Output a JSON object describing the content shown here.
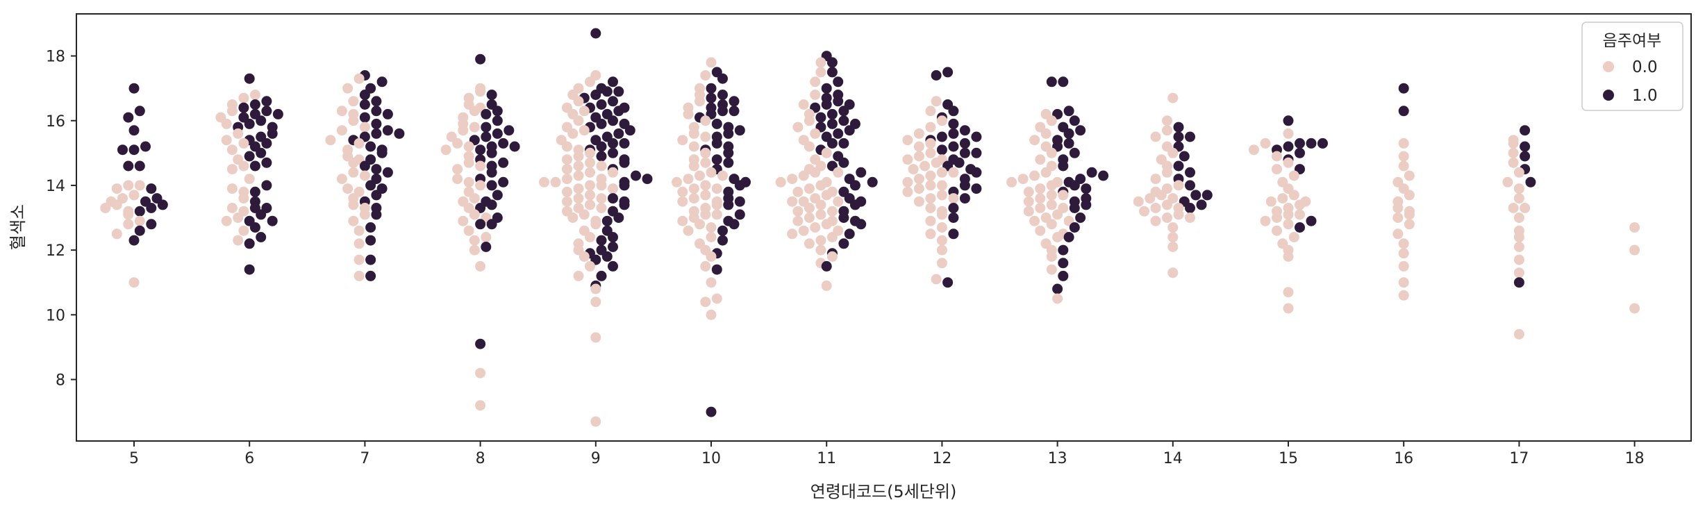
{
  "chart_data": {
    "type": "swarm",
    "xlabel": "연령대코드(5세단위)",
    "ylabel": "혈색소",
    "ylim": [
      6.1,
      19.3
    ],
    "yticks": [
      8,
      10,
      12,
      14,
      16,
      18
    ],
    "categories": [
      "5",
      "6",
      "7",
      "8",
      "9",
      "10",
      "11",
      "12",
      "13",
      "14",
      "15",
      "16",
      "17",
      "18"
    ],
    "grid": false,
    "legend": {
      "title": "음주여부",
      "placement": "top-right",
      "entries": [
        {
          "label": "0.0",
          "color": "#ebcdc3"
        },
        {
          "label": "1.0",
          "color": "#2e1a3a"
        }
      ]
    },
    "hue_order": [
      "0.0",
      "1.0"
    ],
    "colors": {
      "0.0": "#ebcdc3",
      "1.0": "#2e1a3a"
    },
    "series": [
      {
        "name": "0.0",
        "points": {
          "5": [
            11.0,
            12.5,
            12.8,
            13.1,
            13.3,
            13.5,
            13.6,
            13.7,
            13.9,
            14.0,
            14.0,
            13.4,
            13.2,
            12.9
          ],
          "6": [
            12.3,
            12.6,
            12.9,
            13.0,
            13.3,
            13.6,
            13.9,
            14.2,
            14.5,
            14.8,
            15.1,
            15.4,
            15.6,
            15.9,
            16.1,
            16.3,
            16.5,
            16.7,
            16.8,
            13.2,
            13.8,
            14.6,
            15.3
          ],
          "7": [
            11.2,
            11.7,
            12.2,
            12.6,
            12.9,
            13.1,
            13.4,
            13.6,
            13.9,
            14.2,
            14.4,
            14.7,
            14.9,
            15.1,
            15.4,
            15.7,
            16.0,
            16.3,
            16.6,
            17.0,
            17.3,
            13.3,
            13.8,
            14.3,
            14.8,
            15.3,
            15.8,
            16.2
          ],
          "8": [
            7.2,
            8.2,
            11.5,
            12.0,
            12.3,
            12.6,
            12.9,
            13.1,
            13.3,
            13.5,
            13.8,
            14.0,
            14.2,
            14.5,
            14.7,
            14.9,
            15.1,
            15.3,
            15.5,
            15.7,
            15.9,
            16.1,
            16.3,
            16.5,
            16.7,
            16.9,
            17.0,
            12.4,
            13.0,
            13.6,
            14.1,
            14.6,
            15.2,
            15.8,
            16.4
          ],
          "9": [
            6.7,
            9.3,
            10.4,
            10.8,
            11.2,
            11.5,
            11.8,
            12.0,
            12.2,
            12.4,
            12.6,
            12.8,
            13.0,
            13.1,
            13.2,
            13.3,
            13.4,
            13.5,
            13.6,
            13.7,
            13.8,
            13.9,
            14.0,
            14.0,
            14.1,
            14.1,
            14.2,
            14.3,
            14.4,
            14.5,
            14.6,
            14.7,
            14.8,
            14.9,
            15.0,
            15.2,
            15.4,
            15.6,
            15.8,
            16.0,
            16.2,
            16.4,
            16.6,
            16.8,
            17.0,
            17.2,
            17.4,
            12.9,
            13.3,
            13.6,
            13.9,
            14.2,
            14.4,
            14.6,
            15.1,
            15.7,
            16.3
          ],
          "10": [
            10.0,
            10.4,
            10.5,
            11.0,
            11.5,
            11.8,
            12.0,
            12.2,
            12.4,
            12.6,
            12.8,
            12.9,
            13.0,
            13.1,
            13.2,
            13.3,
            13.4,
            13.5,
            13.6,
            13.7,
            13.8,
            13.9,
            14.0,
            14.1,
            14.2,
            14.3,
            14.4,
            14.6,
            14.8,
            15.0,
            15.2,
            15.4,
            15.6,
            15.8,
            16.0,
            16.2,
            16.4,
            16.6,
            16.8,
            17.0,
            17.4,
            17.8,
            12.7,
            13.1,
            13.5,
            13.9,
            14.3,
            14.7,
            15.5
          ],
          "11": [
            10.9,
            11.6,
            11.8,
            12.0,
            12.2,
            12.3,
            12.4,
            12.5,
            12.6,
            12.7,
            12.8,
            12.9,
            13.0,
            13.1,
            13.2,
            13.3,
            13.4,
            13.5,
            13.5,
            13.6,
            13.7,
            13.8,
            13.9,
            14.0,
            14.1,
            14.2,
            14.3,
            14.4,
            14.5,
            14.6,
            14.8,
            15.0,
            15.2,
            15.4,
            15.6,
            15.8,
            16.0,
            16.2,
            16.5,
            16.8,
            17.2,
            17.5,
            17.8,
            12.6,
            12.9,
            13.2,
            13.5,
            13.8,
            14.1,
            14.4
          ],
          "12": [
            11.1,
            11.6,
            12.0,
            12.3,
            12.5,
            12.7,
            12.9,
            13.1,
            13.3,
            13.5,
            13.6,
            13.7,
            13.8,
            13.9,
            14.0,
            14.1,
            14.2,
            14.3,
            14.4,
            14.5,
            14.6,
            14.7,
            14.8,
            14.9,
            15.0,
            15.2,
            15.4,
            15.6,
            15.8,
            16.0,
            16.3,
            16.6,
            13.2,
            13.6,
            14.0,
            14.4,
            14.8,
            15.3
          ],
          "13": [
            10.5,
            11.4,
            11.8,
            12.0,
            12.2,
            12.4,
            12.6,
            12.8,
            12.9,
            13.0,
            13.1,
            13.2,
            13.3,
            13.4,
            13.5,
            13.6,
            13.7,
            13.8,
            13.9,
            14.0,
            14.1,
            14.2,
            14.3,
            14.4,
            14.6,
            14.8,
            15.0,
            15.2,
            15.4,
            15.6,
            15.8,
            16.0,
            16.2,
            12.5,
            12.9,
            13.3,
            13.7,
            14.1
          ],
          "14": [
            11.3,
            12.1,
            12.4,
            12.7,
            12.9,
            13.0,
            13.1,
            13.2,
            13.3,
            13.4,
            13.5,
            13.6,
            13.7,
            13.8,
            13.9,
            14.0,
            14.2,
            14.4,
            14.6,
            14.8,
            15.0,
            15.2,
            15.5,
            15.7,
            16.0,
            16.7,
            13.0,
            13.3,
            13.6
          ],
          "15": [
            10.2,
            10.7,
            11.8,
            12.0,
            12.2,
            12.4,
            12.6,
            12.8,
            12.9,
            13.0,
            13.1,
            13.2,
            13.3,
            13.4,
            13.5,
            13.6,
            13.7,
            13.9,
            14.1,
            14.3,
            14.5,
            14.7,
            14.9,
            15.1,
            15.3,
            15.6,
            13.1,
            13.5
          ],
          "16": [
            10.6,
            11.0,
            11.5,
            11.9,
            12.2,
            12.5,
            12.8,
            13.0,
            13.1,
            13.3,
            13.5,
            13.7,
            13.9,
            14.1,
            14.3,
            14.6,
            14.9,
            15.3,
            13.2
          ],
          "17": [
            9.4,
            11.3,
            11.7,
            12.1,
            12.4,
            12.6,
            13.0,
            13.3,
            13.6,
            13.9,
            14.1,
            14.4,
            14.7,
            15.0,
            15.3,
            15.4,
            13.3
          ],
          "18": [
            10.2,
            12.0,
            12.7
          ]
        }
      },
      {
        "name": "1.0",
        "points": {
          "5": [
            12.3,
            12.6,
            12.8,
            13.2,
            13.3,
            13.5,
            13.6,
            13.9,
            14.6,
            14.6,
            15.1,
            15.1,
            15.2,
            15.7,
            16.1,
            16.3,
            17.0,
            13.4
          ],
          "6": [
            11.4,
            12.2,
            12.4,
            12.7,
            12.9,
            13.1,
            13.3,
            13.5,
            13.8,
            14.0,
            14.6,
            14.9,
            15.0,
            15.2,
            15.4,
            15.5,
            15.6,
            15.8,
            15.9,
            16.0,
            16.1,
            16.2,
            16.3,
            16.4,
            16.5,
            16.6,
            17.3,
            12.9,
            13.3,
            14.7,
            15.3,
            15.8,
            16.2
          ],
          "7": [
            11.2,
            11.7,
            12.3,
            12.7,
            13.3,
            13.5,
            13.7,
            14.0,
            14.2,
            14.4,
            14.6,
            14.8,
            15.0,
            15.2,
            15.4,
            15.5,
            15.6,
            15.7,
            15.9,
            16.1,
            16.3,
            16.5,
            16.6,
            16.8,
            17.0,
            17.2,
            17.4,
            13.1,
            13.9,
            14.5,
            15.1,
            15.6,
            16.2
          ],
          "8": [
            9.1,
            12.1,
            12.8,
            13.0,
            13.3,
            13.5,
            13.7,
            14.0,
            14.2,
            14.4,
            14.6,
            14.8,
            15.0,
            15.1,
            15.2,
            15.3,
            15.4,
            15.5,
            15.6,
            15.8,
            16.0,
            16.2,
            16.5,
            16.8,
            17.9,
            12.8,
            13.4,
            14.1,
            14.7,
            15.2,
            15.7,
            16.3
          ],
          "9": [
            10.9,
            11.2,
            11.5,
            11.7,
            11.9,
            12.0,
            12.1,
            12.3,
            12.6,
            12.9,
            13.2,
            13.4,
            13.6,
            14.0,
            14.1,
            14.3,
            14.5,
            14.7,
            14.9,
            15.0,
            15.1,
            15.2,
            15.3,
            15.4,
            15.5,
            15.6,
            15.7,
            15.8,
            15.9,
            16.0,
            16.1,
            16.2,
            16.3,
            16.4,
            16.5,
            16.6,
            16.7,
            16.8,
            16.9,
            17.0,
            17.2,
            18.7,
            11.8,
            12.4,
            13.0,
            13.5,
            14.2,
            14.8,
            15.3,
            15.9,
            16.4,
            16.9
          ],
          "10": [
            7.0,
            11.4,
            11.9,
            12.3,
            12.6,
            12.9,
            13.1,
            13.4,
            13.6,
            13.8,
            14.0,
            14.2,
            14.5,
            14.8,
            15.0,
            15.1,
            15.3,
            15.5,
            15.6,
            15.7,
            15.9,
            16.1,
            16.2,
            16.3,
            16.4,
            16.5,
            16.6,
            16.7,
            16.8,
            17.0,
            17.3,
            17.5,
            12.8,
            13.5,
            14.1,
            14.7,
            15.2,
            15.8,
            16.3
          ],
          "11": [
            11.5,
            11.9,
            12.2,
            12.5,
            12.8,
            13.0,
            13.2,
            13.4,
            13.6,
            13.8,
            14.0,
            14.2,
            14.4,
            14.6,
            14.9,
            15.1,
            15.3,
            15.5,
            15.6,
            15.7,
            15.8,
            15.9,
            16.0,
            16.1,
            16.2,
            16.3,
            16.4,
            16.5,
            16.6,
            16.7,
            16.8,
            17.0,
            17.2,
            17.5,
            17.8,
            18.0,
            12.9,
            13.5,
            14.1,
            14.7,
            15.3,
            15.9,
            16.5
          ],
          "12": [
            11.0,
            12.5,
            13.0,
            13.3,
            13.6,
            13.8,
            14.0,
            14.2,
            14.4,
            14.6,
            14.7,
            14.8,
            15.0,
            15.1,
            15.2,
            15.3,
            15.4,
            15.5,
            15.6,
            15.7,
            15.9,
            16.1,
            16.3,
            16.5,
            17.4,
            17.5,
            13.9,
            14.5,
            15.0,
            15.5
          ],
          "13": [
            10.8,
            11.2,
            11.6,
            12.0,
            12.4,
            12.7,
            13.0,
            13.3,
            13.5,
            13.6,
            13.8,
            14.0,
            14.1,
            14.2,
            14.4,
            14.6,
            14.8,
            15.0,
            15.2,
            15.4,
            15.6,
            15.8,
            16.0,
            16.2,
            16.3,
            17.2,
            17.2,
            13.4,
            13.9,
            14.3,
            15.3,
            15.7
          ],
          "14": [
            13.3,
            13.4,
            13.5,
            13.7,
            13.7,
            14.0,
            14.2,
            14.4,
            14.6,
            14.9,
            15.2,
            15.5,
            15.8,
            15.5
          ],
          "15": [
            12.7,
            12.9,
            14.5,
            14.8,
            15.0,
            15.1,
            15.2,
            15.3,
            15.3,
            16.0,
            15.3
          ],
          "16": [
            16.3,
            17.0
          ],
          "17": [
            11.0,
            14.1,
            14.5,
            14.9,
            15.2,
            15.7
          ],
          "18": []
        }
      }
    ]
  }
}
